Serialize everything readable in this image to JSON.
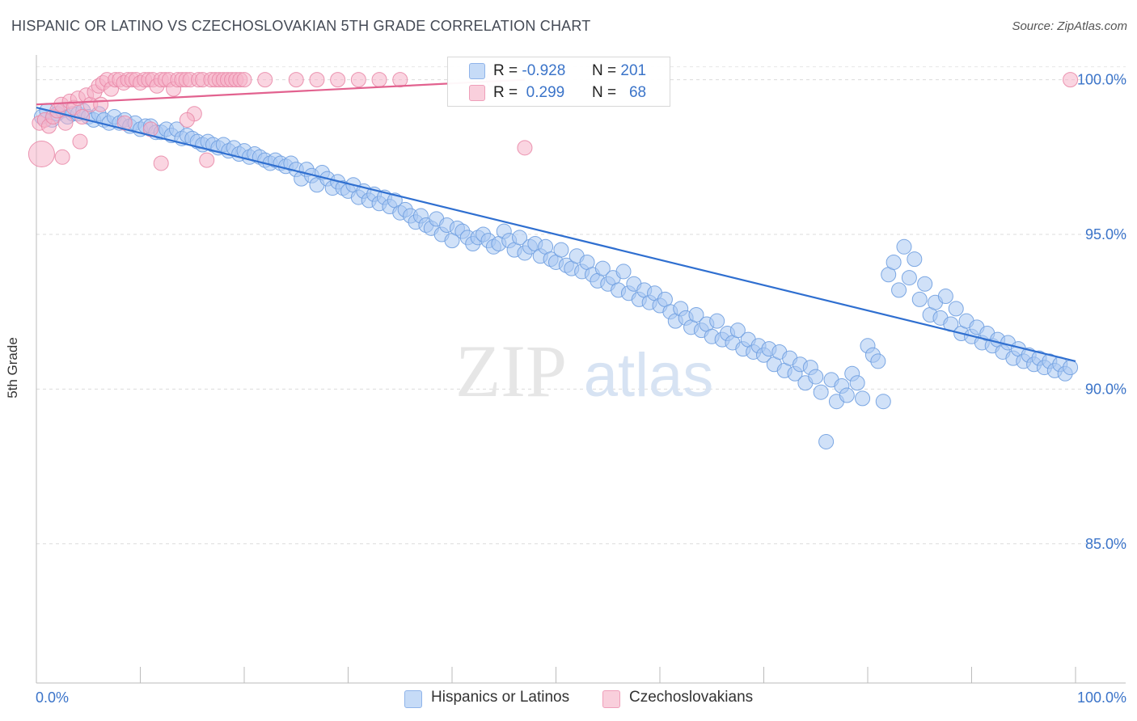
{
  "header": {
    "title": "HISPANIC OR LATINO VS CZECHOSLOVAKIAN 5TH GRADE CORRELATION CHART",
    "source": "Source: ZipAtlas.com"
  },
  "watermark": {
    "zip": "ZIP",
    "atlas": "atlas"
  },
  "legend_top": {
    "rows": [
      {
        "r_label": "R =",
        "r_value": "-0.928",
        "n_label": "N =",
        "n_value": "201",
        "color": "#a9c8f2"
      },
      {
        "r_label": "R =",
        "r_value": "0.299",
        "n_label": "N =",
        "n_value": "68",
        "color": "#f6b3c8"
      }
    ]
  },
  "legend_bottom": {
    "items": [
      {
        "label": "Hispanics or Latinos",
        "color": "#a9c8f2"
      },
      {
        "label": "Czechoslovakians",
        "color": "#f6b3c8"
      }
    ]
  },
  "chart_data": {
    "type": "scatter",
    "title": "HISPANIC OR LATINO VS CZECHOSLOVAKIAN 5TH GRADE CORRELATION CHART",
    "xlabel": "",
    "ylabel": "5th Grade",
    "xlim": [
      0,
      100
    ],
    "ylim": [
      80.5,
      100.8
    ],
    "x_tick_labels": [
      "0.0%",
      "100.0%"
    ],
    "y_ticks": [
      85,
      90,
      95,
      100
    ],
    "y_tick_labels": [
      "85.0%",
      "90.0%",
      "95.0%",
      "100.0%"
    ],
    "grid": "horizontal dashed",
    "legend_placement": "top-center and bottom",
    "series": [
      {
        "name": "Hispanics or Latinos",
        "color": "#6f9fe0",
        "fill": "#a9c8f2",
        "r": -0.928,
        "n": 201,
        "trend": {
          "x": [
            0,
            100
          ],
          "y": [
            99.1,
            90.9
          ]
        },
        "points": [
          [
            0.5,
            98.8
          ],
          [
            1,
            99
          ],
          [
            1.5,
            98.7
          ],
          [
            2,
            98.9
          ],
          [
            2.5,
            99
          ],
          [
            3,
            98.8
          ],
          [
            3.5,
            98.9
          ],
          [
            4,
            98.9
          ],
          [
            4.5,
            99
          ],
          [
            5,
            98.8
          ],
          [
            5.5,
            98.7
          ],
          [
            6,
            98.9
          ],
          [
            6.5,
            98.7
          ],
          [
            7,
            98.6
          ],
          [
            7.5,
            98.8
          ],
          [
            8,
            98.6
          ],
          [
            8.5,
            98.7
          ],
          [
            9,
            98.5
          ],
          [
            9.5,
            98.6
          ],
          [
            10,
            98.4
          ],
          [
            10.5,
            98.5
          ],
          [
            11,
            98.5
          ],
          [
            11.5,
            98.3
          ],
          [
            12,
            98.3
          ],
          [
            12.5,
            98.4
          ],
          [
            13,
            98.2
          ],
          [
            13.5,
            98.4
          ],
          [
            14,
            98.1
          ],
          [
            14.5,
            98.2
          ],
          [
            15,
            98.1
          ],
          [
            15.5,
            98
          ],
          [
            16,
            97.9
          ],
          [
            16.5,
            98
          ],
          [
            17,
            97.9
          ],
          [
            17.5,
            97.8
          ],
          [
            18,
            97.9
          ],
          [
            18.5,
            97.7
          ],
          [
            19,
            97.8
          ],
          [
            19.5,
            97.6
          ],
          [
            20,
            97.7
          ],
          [
            20.5,
            97.5
          ],
          [
            21,
            97.6
          ],
          [
            21.5,
            97.5
          ],
          [
            22,
            97.4
          ],
          [
            22.5,
            97.3
          ],
          [
            23,
            97.4
          ],
          [
            23.5,
            97.3
          ],
          [
            24,
            97.2
          ],
          [
            24.5,
            97.3
          ],
          [
            25,
            97.1
          ],
          [
            25.5,
            96.8
          ],
          [
            26,
            97.1
          ],
          [
            26.5,
            96.9
          ],
          [
            27,
            96.6
          ],
          [
            27.5,
            97
          ],
          [
            28,
            96.8
          ],
          [
            28.5,
            96.5
          ],
          [
            29,
            96.7
          ],
          [
            29.5,
            96.5
          ],
          [
            30,
            96.4
          ],
          [
            30.5,
            96.6
          ],
          [
            31,
            96.2
          ],
          [
            31.5,
            96.4
          ],
          [
            32,
            96.1
          ],
          [
            32.5,
            96.3
          ],
          [
            33,
            96
          ],
          [
            33.5,
            96.2
          ],
          [
            34,
            95.9
          ],
          [
            34.5,
            96.1
          ],
          [
            35,
            95.7
          ],
          [
            35.5,
            95.8
          ],
          [
            36,
            95.6
          ],
          [
            36.5,
            95.4
          ],
          [
            37,
            95.6
          ],
          [
            37.5,
            95.3
          ],
          [
            38,
            95.2
          ],
          [
            38.5,
            95.5
          ],
          [
            39,
            95
          ],
          [
            39.5,
            95.3
          ],
          [
            40,
            94.8
          ],
          [
            40.5,
            95.2
          ],
          [
            41,
            95.1
          ],
          [
            41.5,
            94.9
          ],
          [
            42,
            94.7
          ],
          [
            42.5,
            94.9
          ],
          [
            43,
            95
          ],
          [
            43.5,
            94.8
          ],
          [
            44,
            94.6
          ],
          [
            44.5,
            94.7
          ],
          [
            45,
            95.1
          ],
          [
            45.5,
            94.8
          ],
          [
            46,
            94.5
          ],
          [
            46.5,
            94.9
          ],
          [
            47,
            94.4
          ],
          [
            47.5,
            94.6
          ],
          [
            48,
            94.7
          ],
          [
            48.5,
            94.3
          ],
          [
            49,
            94.6
          ],
          [
            49.5,
            94.2
          ],
          [
            50,
            94.1
          ],
          [
            50.5,
            94.5
          ],
          [
            51,
            94
          ],
          [
            51.5,
            93.9
          ],
          [
            52,
            94.3
          ],
          [
            52.5,
            93.8
          ],
          [
            53,
            94.1
          ],
          [
            53.5,
            93.7
          ],
          [
            54,
            93.5
          ],
          [
            54.5,
            93.9
          ],
          [
            55,
            93.4
          ],
          [
            55.5,
            93.6
          ],
          [
            56,
            93.2
          ],
          [
            56.5,
            93.8
          ],
          [
            57,
            93.1
          ],
          [
            57.5,
            93.4
          ],
          [
            58,
            92.9
          ],
          [
            58.5,
            93.2
          ],
          [
            59,
            92.8
          ],
          [
            59.5,
            93.1
          ],
          [
            60,
            92.7
          ],
          [
            60.5,
            92.9
          ],
          [
            61,
            92.5
          ],
          [
            61.5,
            92.2
          ],
          [
            62,
            92.6
          ],
          [
            62.5,
            92.3
          ],
          [
            63,
            92
          ],
          [
            63.5,
            92.4
          ],
          [
            64,
            91.9
          ],
          [
            64.5,
            92.1
          ],
          [
            65,
            91.7
          ],
          [
            65.5,
            92.2
          ],
          [
            66,
            91.6
          ],
          [
            66.5,
            91.8
          ],
          [
            67,
            91.5
          ],
          [
            67.5,
            91.9
          ],
          [
            68,
            91.3
          ],
          [
            68.5,
            91.6
          ],
          [
            69,
            91.2
          ],
          [
            69.5,
            91.4
          ],
          [
            70,
            91.1
          ],
          [
            70.5,
            91.3
          ],
          [
            71,
            90.8
          ],
          [
            71.5,
            91.2
          ],
          [
            72,
            90.6
          ],
          [
            72.5,
            91
          ],
          [
            73,
            90.5
          ],
          [
            73.5,
            90.8
          ],
          [
            74,
            90.2
          ],
          [
            74.5,
            90.7
          ],
          [
            75,
            90.4
          ],
          [
            75.5,
            89.9
          ],
          [
            76,
            88.3
          ],
          [
            76.5,
            90.3
          ],
          [
            77,
            89.6
          ],
          [
            77.5,
            90.1
          ],
          [
            78,
            89.8
          ],
          [
            78.5,
            90.5
          ],
          [
            79,
            90.2
          ],
          [
            79.5,
            89.7
          ],
          [
            80,
            91.4
          ],
          [
            80.5,
            91.1
          ],
          [
            81,
            90.9
          ],
          [
            81.5,
            89.6
          ],
          [
            82,
            93.7
          ],
          [
            82.5,
            94.1
          ],
          [
            83,
            93.2
          ],
          [
            83.5,
            94.6
          ],
          [
            84,
            93.6
          ],
          [
            84.5,
            94.2
          ],
          [
            85,
            92.9
          ],
          [
            85.5,
            93.4
          ],
          [
            86,
            92.4
          ],
          [
            86.5,
            92.8
          ],
          [
            87,
            92.3
          ],
          [
            87.5,
            93
          ],
          [
            88,
            92.1
          ],
          [
            88.5,
            92.6
          ],
          [
            89,
            91.8
          ],
          [
            89.5,
            92.2
          ],
          [
            90,
            91.7
          ],
          [
            90.5,
            92
          ],
          [
            91,
            91.5
          ],
          [
            91.5,
            91.8
          ],
          [
            92,
            91.4
          ],
          [
            92.5,
            91.6
          ],
          [
            93,
            91.2
          ],
          [
            93.5,
            91.5
          ],
          [
            94,
            91
          ],
          [
            94.5,
            91.3
          ],
          [
            95,
            90.9
          ],
          [
            95.5,
            91.1
          ],
          [
            96,
            90.8
          ],
          [
            96.5,
            91
          ],
          [
            97,
            90.7
          ],
          [
            97.5,
            90.9
          ],
          [
            98,
            90.6
          ],
          [
            98.5,
            90.8
          ],
          [
            99,
            90.5
          ],
          [
            99.5,
            90.7
          ]
        ]
      },
      {
        "name": "Czechoslovakians",
        "color": "#e98aa9",
        "fill": "#f6b3c8",
        "r": 0.299,
        "n": 68,
        "trend": {
          "x": [
            0,
            47
          ],
          "y": [
            99.2,
            100.0
          ]
        },
        "points": [
          [
            0.3,
            98.6
          ],
          [
            0.8,
            98.7
          ],
          [
            1.2,
            98.5
          ],
          [
            1.6,
            98.8
          ],
          [
            2,
            99
          ],
          [
            2.4,
            99.2
          ],
          [
            2.8,
            98.6
          ],
          [
            3.2,
            99.3
          ],
          [
            3.6,
            99.1
          ],
          [
            4,
            99.4
          ],
          [
            4.4,
            98.8
          ],
          [
            4.8,
            99.5
          ],
          [
            5.2,
            99.2
          ],
          [
            5.6,
            99.6
          ],
          [
            6,
            99.8
          ],
          [
            6.4,
            99.9
          ],
          [
            6.8,
            100
          ],
          [
            7.2,
            99.7
          ],
          [
            7.6,
            100
          ],
          [
            8,
            100
          ],
          [
            8.4,
            99.9
          ],
          [
            8.8,
            100
          ],
          [
            9.2,
            100
          ],
          [
            9.6,
            100
          ],
          [
            10,
            99.9
          ],
          [
            10.4,
            100
          ],
          [
            10.8,
            100
          ],
          [
            11.2,
            100
          ],
          [
            11.6,
            99.8
          ],
          [
            12,
            100
          ],
          [
            12.4,
            100
          ],
          [
            12.8,
            100
          ],
          [
            13.2,
            99.7
          ],
          [
            13.6,
            100
          ],
          [
            14,
            100
          ],
          [
            14.4,
            100
          ],
          [
            14.8,
            100
          ],
          [
            15.2,
            98.9
          ],
          [
            15.6,
            100
          ],
          [
            16,
            100
          ],
          [
            16.4,
            97.4
          ],
          [
            16.8,
            100
          ],
          [
            17.2,
            100
          ],
          [
            17.6,
            100
          ],
          [
            18,
            100
          ],
          [
            18.4,
            100
          ],
          [
            18.8,
            100
          ],
          [
            19.2,
            100
          ],
          [
            19.6,
            100
          ],
          [
            20,
            100
          ],
          [
            0.5,
            97.6
          ],
          [
            2.5,
            97.5
          ],
          [
            4.2,
            98
          ],
          [
            6.2,
            99.2
          ],
          [
            8.5,
            98.6
          ],
          [
            11,
            98.4
          ],
          [
            12,
            97.3
          ],
          [
            14.5,
            98.7
          ],
          [
            22,
            100
          ],
          [
            25,
            100
          ],
          [
            27,
            100
          ],
          [
            29,
            100
          ],
          [
            31,
            100
          ],
          [
            33,
            100
          ],
          [
            35,
            100
          ],
          [
            44,
            100
          ],
          [
            47,
            97.8
          ],
          [
            99.5,
            100
          ]
        ]
      }
    ]
  }
}
